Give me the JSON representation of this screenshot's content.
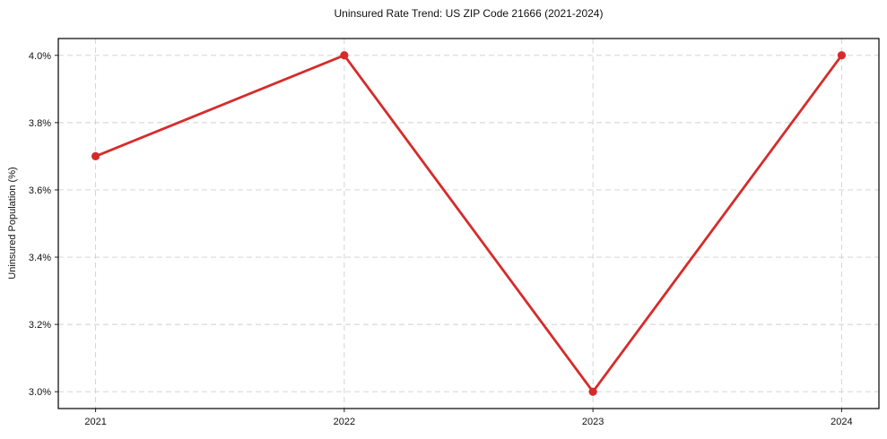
{
  "chart_data": {
    "type": "line",
    "title": "Uninsured Rate Trend: US ZIP Code 21666 (2021-2024)",
    "xlabel": "",
    "ylabel": "Uninsured Population (%)",
    "x": [
      2021,
      2022,
      2023,
      2024
    ],
    "x_tick_labels": [
      "2021",
      "2022",
      "2023",
      "2024"
    ],
    "series": [
      {
        "name": "uninsured-rate",
        "values": [
          3.7,
          4.0,
          3.0,
          4.0
        ]
      }
    ],
    "yticks": [
      3.0,
      3.2,
      3.4,
      3.6,
      3.8,
      4.0
    ],
    "y_tick_labels": [
      "3.0%",
      "3.2%",
      "3.4%",
      "3.6%",
      "3.8%",
      "4.0%"
    ],
    "xlim": [
      2020.85,
      2024.15
    ],
    "ylim": [
      2.95,
      4.05
    ],
    "grid": true,
    "grid_style": "dashed",
    "legend": false,
    "line_color": "#d62b2b",
    "marker": "circle"
  }
}
